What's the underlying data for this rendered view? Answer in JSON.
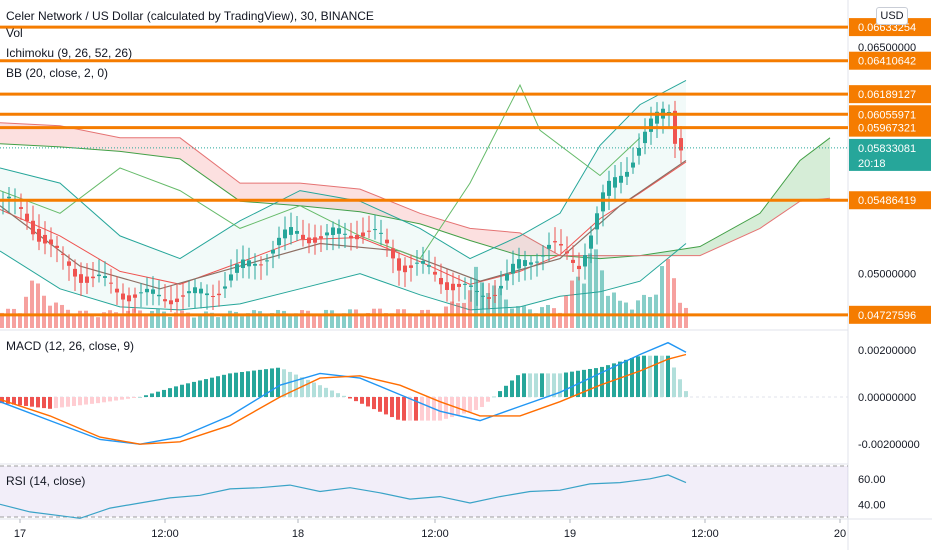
{
  "header": {
    "title": "Celer Network / US Dollar (calculated by TradingView), 30, BINANCE",
    "currency": "USD"
  },
  "indicators": {
    "vol": "Vol",
    "ichimoku": "Ichimoku (9, 26, 52, 26)",
    "bb": "BB (20, close, 2, 0)",
    "macd": "MACD (12, 26, close, 9)",
    "rsi": "RSI (14, close)"
  },
  "colors": {
    "up": "#26a69a",
    "down": "#ef5350",
    "level": "#f57c00",
    "cloud_bull": "#a5d6a7",
    "cloud_bear": "#f8bbbb",
    "macd_line": "#2196f3",
    "signal_line": "#ff6d00",
    "rsi_line": "#7e57c2",
    "price_tag": "#26a69a"
  },
  "levels": [
    "0.06633254",
    "0.06410642",
    "0.06189127",
    "0.06055971",
    "0.05967321",
    "0.05486419",
    "0.04727596"
  ],
  "price_axis": {
    "ticks": [
      "0.06500000",
      "0.05000000"
    ],
    "current_price": "0.05833081",
    "countdown": "20:18"
  },
  "macd_axis": {
    "ticks": [
      "0.00200000",
      "0.00000000",
      "-0.00200000"
    ]
  },
  "rsi_axis": {
    "ticks": [
      "60.00",
      "40.00"
    ]
  },
  "time_axis": {
    "ticks": [
      "17",
      "12:00",
      "18",
      "12:00",
      "19",
      "12:00",
      "20"
    ]
  },
  "chart_data": {
    "type": "candlestick",
    "symbol": "Celer Network / US Dollar",
    "interval": "30",
    "exchange": "BINANCE",
    "price_range": [
      0.0468,
      0.0672
    ],
    "close_path": [
      [
        0,
        0.0548
      ],
      [
        10,
        0.0545
      ],
      [
        25,
        0.054
      ],
      [
        40,
        0.0525
      ],
      [
        55,
        0.0512
      ],
      [
        70,
        0.0505
      ],
      [
        85,
        0.0498
      ],
      [
        100,
        0.0494
      ],
      [
        115,
        0.049
      ],
      [
        130,
        0.0487
      ],
      [
        145,
        0.0484
      ],
      [
        160,
        0.0485
      ],
      [
        175,
        0.0486
      ],
      [
        190,
        0.0484
      ],
      [
        205,
        0.0487
      ],
      [
        220,
        0.0492
      ],
      [
        235,
        0.05
      ],
      [
        250,
        0.0507
      ],
      [
        265,
        0.0513
      ],
      [
        280,
        0.0521
      ],
      [
        295,
        0.0528
      ],
      [
        310,
        0.0526
      ],
      [
        325,
        0.0522
      ],
      [
        340,
        0.0527
      ],
      [
        355,
        0.0529
      ],
      [
        370,
        0.0526
      ],
      [
        385,
        0.052
      ],
      [
        400,
        0.0507
      ],
      [
        415,
        0.0504
      ],
      [
        430,
        0.0501
      ],
      [
        445,
        0.0496
      ],
      [
        460,
        0.049
      ],
      [
        475,
        0.0485
      ],
      [
        490,
        0.0489
      ],
      [
        505,
        0.0496
      ],
      [
        520,
        0.0505
      ],
      [
        535,
        0.0513
      ],
      [
        550,
        0.052
      ],
      [
        565,
        0.051
      ],
      [
        578,
        0.0506
      ],
      [
        590,
        0.0527
      ],
      [
        605,
        0.0552
      ],
      [
        620,
        0.0566
      ],
      [
        635,
        0.0581
      ],
      [
        650,
        0.0596
      ],
      [
        660,
        0.0605
      ],
      [
        668,
        0.0614
      ],
      [
        675,
        0.0592
      ],
      [
        682,
        0.0585
      ],
      [
        686,
        0.05833081
      ]
    ],
    "volume_path": [
      [
        0,
        1.2
      ],
      [
        20,
        1.0
      ],
      [
        28,
        3.0
      ],
      [
        60,
        1.3
      ],
      [
        90,
        0.9
      ],
      [
        140,
        1.1
      ],
      [
        200,
        0.9
      ],
      [
        260,
        1.0
      ],
      [
        320,
        1.0
      ],
      [
        380,
        1.1
      ],
      [
        440,
        1.0
      ],
      [
        470,
        2.2
      ],
      [
        476,
        3.4
      ],
      [
        520,
        1.2
      ],
      [
        560,
        1.3
      ],
      [
        592,
        4.8
      ],
      [
        620,
        1.5
      ],
      [
        650,
        1.9
      ],
      [
        664,
        4.3
      ],
      [
        672,
        3.3
      ],
      [
        686,
        1.3
      ]
    ],
    "macd_path": [
      [
        0,
        -0.0002
      ],
      [
        50,
        -0.001
      ],
      [
        100,
        -0.0018
      ],
      [
        140,
        -0.002
      ],
      [
        180,
        -0.0017
      ],
      [
        230,
        -0.0008
      ],
      [
        280,
        0.0005
      ],
      [
        320,
        0.001
      ],
      [
        360,
        0.0008
      ],
      [
        400,
        0.0001
      ],
      [
        440,
        -0.0006
      ],
      [
        480,
        -0.001
      ],
      [
        520,
        -0.0004
      ],
      [
        560,
        0.0002
      ],
      [
        600,
        0.001
      ],
      [
        640,
        0.0018
      ],
      [
        668,
        0.0023
      ],
      [
        686,
        0.0019
      ]
    ],
    "signal_path": [
      [
        0,
        -0.0001
      ],
      [
        50,
        -0.0008
      ],
      [
        100,
        -0.0017
      ],
      [
        140,
        -0.002
      ],
      [
        180,
        -0.0019
      ],
      [
        230,
        -0.0012
      ],
      [
        280,
        0.0
      ],
      [
        320,
        0.0008
      ],
      [
        360,
        0.0009
      ],
      [
        400,
        0.0005
      ],
      [
        440,
        -0.0002
      ],
      [
        480,
        -0.0008
      ],
      [
        520,
        -0.0008
      ],
      [
        560,
        -0.0002
      ],
      [
        600,
        0.0005
      ],
      [
        640,
        0.0011
      ],
      [
        668,
        0.0016
      ],
      [
        686,
        0.0018
      ]
    ],
    "rsi_path": [
      [
        0,
        40
      ],
      [
        30,
        34
      ],
      [
        60,
        31
      ],
      [
        80,
        29
      ],
      [
        110,
        37
      ],
      [
        140,
        41
      ],
      [
        170,
        45
      ],
      [
        200,
        47
      ],
      [
        230,
        52
      ],
      [
        260,
        53
      ],
      [
        290,
        55
      ],
      [
        320,
        50
      ],
      [
        350,
        53
      ],
      [
        380,
        49
      ],
      [
        410,
        44
      ],
      [
        440,
        46
      ],
      [
        470,
        41
      ],
      [
        500,
        46
      ],
      [
        530,
        50
      ],
      [
        560,
        51
      ],
      [
        590,
        56
      ],
      [
        620,
        57
      ],
      [
        650,
        60
      ],
      [
        668,
        63
      ],
      [
        686,
        57
      ]
    ],
    "macd_range": [
      -0.0025,
      0.0025
    ],
    "rsi_range": [
      30,
      70
    ]
  }
}
